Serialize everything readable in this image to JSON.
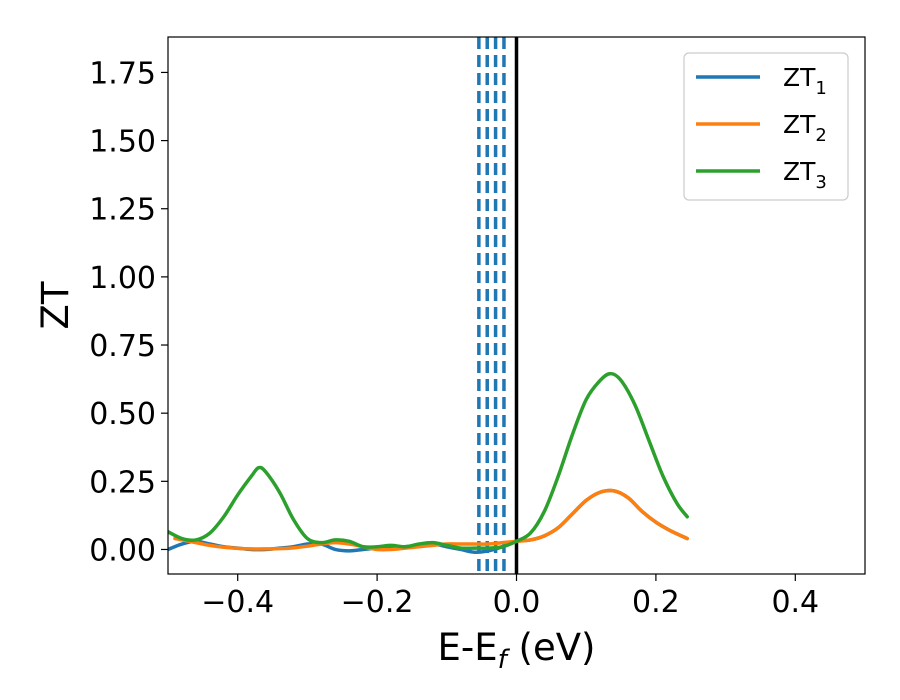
{
  "chart_data": {
    "type": "line",
    "xlabel": "E-E",
    "xlabel_subscript": "f",
    "xlabel_unit": " (eV)",
    "ylabel": "ZT",
    "xlim": [
      -0.5,
      0.5
    ],
    "ylim": [
      -0.09,
      1.88
    ],
    "xticks": [
      -0.4,
      -0.2,
      0.0,
      0.2,
      0.4
    ],
    "xtick_labels": [
      "−0.4",
      "−0.2",
      "0.0",
      "0.2",
      "0.4"
    ],
    "yticks": [
      0.0,
      0.25,
      0.5,
      0.75,
      1.0,
      1.25,
      1.5,
      1.75
    ],
    "ytick_labels": [
      "0.00",
      "0.25",
      "0.50",
      "0.75",
      "1.00",
      "1.25",
      "1.50",
      "1.75"
    ],
    "legend_position": "top-right",
    "vlines": [
      {
        "x": 0.0,
        "color": "#000000",
        "style": "solid"
      },
      {
        "x": -0.054,
        "color": "#1f77b4",
        "style": "dashed"
      },
      {
        "x": -0.042,
        "color": "#1f77b4",
        "style": "dashed"
      },
      {
        "x": -0.03,
        "color": "#1f77b4",
        "style": "dashed"
      },
      {
        "x": -0.018,
        "color": "#1f77b4",
        "style": "dashed"
      }
    ],
    "series": [
      {
        "name": "ZT",
        "subscript": "1",
        "color": "#1f77b4",
        "x": [
          -0.5,
          -0.48,
          -0.46,
          -0.44,
          -0.42,
          -0.4,
          -0.38,
          -0.36,
          -0.34,
          -0.32,
          -0.3,
          -0.28,
          -0.26,
          -0.24,
          -0.22,
          -0.2,
          -0.18,
          -0.16,
          -0.14,
          -0.12,
          -0.1,
          -0.08,
          -0.06,
          -0.04,
          -0.02,
          0.0,
          0.02,
          0.04,
          0.06,
          0.08,
          0.1,
          0.12,
          0.14,
          0.16,
          0.18,
          0.2,
          0.22,
          0.245
        ],
        "y": [
          0.0,
          0.02,
          0.03,
          0.02,
          0.01,
          0.005,
          0.0,
          0.0,
          0.005,
          0.01,
          0.02,
          0.02,
          0.0,
          -0.005,
          0.0,
          0.005,
          0.005,
          0.01,
          0.015,
          0.02,
          0.01,
          0.0,
          -0.01,
          -0.005,
          0.01,
          0.03,
          0.035,
          0.05,
          0.08,
          0.13,
          0.18,
          0.21,
          0.215,
          0.19,
          0.14,
          0.1,
          0.07,
          0.04
        ]
      },
      {
        "name": "ZT",
        "subscript": "2",
        "color": "#ff7f0e",
        "x": [
          -0.49,
          -0.46,
          -0.44,
          -0.42,
          -0.4,
          -0.38,
          -0.36,
          -0.34,
          -0.32,
          -0.3,
          -0.28,
          -0.26,
          -0.24,
          -0.22,
          -0.2,
          -0.18,
          -0.16,
          -0.14,
          -0.12,
          -0.1,
          -0.08,
          -0.06,
          -0.04,
          -0.02,
          0.0,
          0.02,
          0.04,
          0.06,
          0.08,
          0.1,
          0.12,
          0.14,
          0.16,
          0.18,
          0.2,
          0.22,
          0.245
        ],
        "y": [
          0.04,
          0.025,
          0.015,
          0.008,
          0.004,
          0.002,
          0.002,
          0.003,
          0.006,
          0.012,
          0.02,
          0.025,
          0.02,
          0.01,
          0.0,
          0.0,
          0.005,
          0.01,
          0.015,
          0.02,
          0.02,
          0.02,
          0.02,
          0.025,
          0.03,
          0.035,
          0.05,
          0.08,
          0.13,
          0.18,
          0.21,
          0.215,
          0.19,
          0.14,
          0.1,
          0.07,
          0.04
        ]
      },
      {
        "name": "ZT",
        "subscript": "3",
        "color": "#2ca02c",
        "x": [
          -0.5,
          -0.48,
          -0.46,
          -0.44,
          -0.42,
          -0.4,
          -0.38,
          -0.37,
          -0.36,
          -0.34,
          -0.32,
          -0.3,
          -0.28,
          -0.26,
          -0.24,
          -0.22,
          -0.2,
          -0.18,
          -0.16,
          -0.14,
          -0.12,
          -0.1,
          -0.08,
          -0.06,
          -0.04,
          -0.02,
          0.0,
          0.02,
          0.04,
          0.06,
          0.08,
          0.1,
          0.12,
          0.135,
          0.15,
          0.17,
          0.19,
          0.21,
          0.23,
          0.245
        ],
        "y": [
          0.065,
          0.04,
          0.035,
          0.06,
          0.12,
          0.2,
          0.27,
          0.3,
          0.285,
          0.21,
          0.11,
          0.04,
          0.025,
          0.035,
          0.03,
          0.01,
          0.01,
          0.015,
          0.01,
          0.02,
          0.025,
          0.015,
          0.005,
          0.005,
          0.005,
          0.01,
          0.03,
          0.06,
          0.14,
          0.27,
          0.42,
          0.55,
          0.62,
          0.645,
          0.62,
          0.53,
          0.4,
          0.27,
          0.17,
          0.12
        ]
      }
    ]
  }
}
